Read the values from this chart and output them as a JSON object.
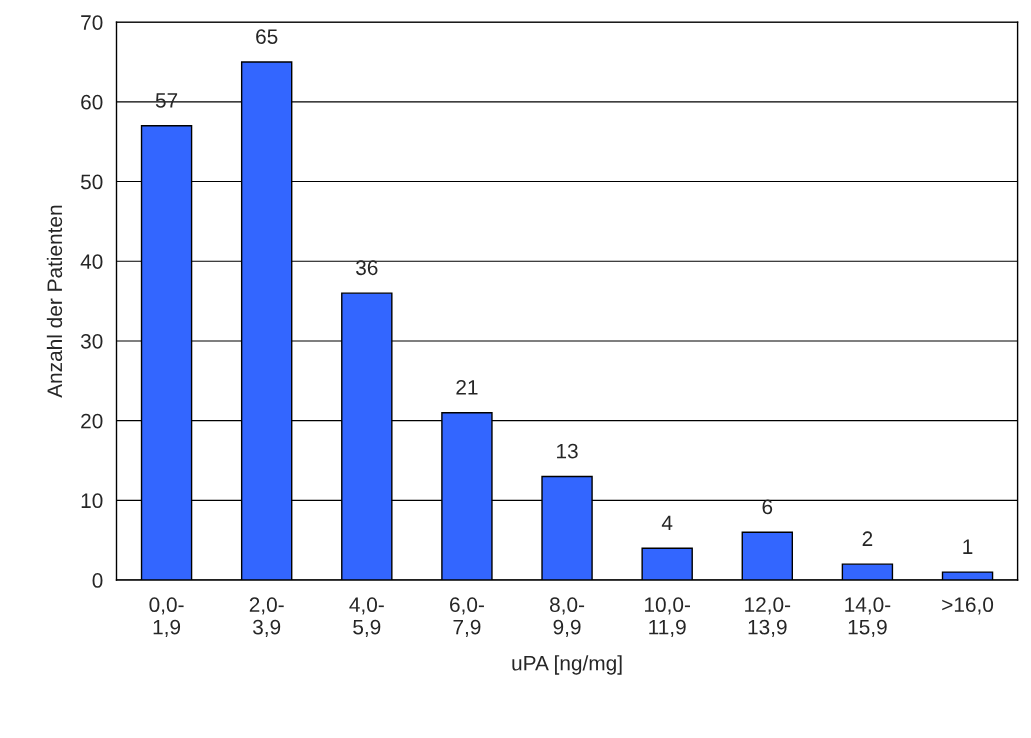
{
  "chart_data": {
    "type": "bar",
    "xlabel": "uPA [ng/mg]",
    "ylabel": "Anzahl der Patienten",
    "categories": [
      "0,0-\n1,9",
      "2,0-\n3,9",
      "4,0-\n5,9",
      "6,0-\n7,9",
      "8,0-\n9,9",
      "10,0-\n11,9",
      "12,0-\n13,9",
      "14,0-\n15,9",
      ">16,0"
    ],
    "values": [
      57,
      65,
      36,
      21,
      13,
      4,
      6,
      2,
      1
    ],
    "color": "#3366ff",
    "ylim": [
      0,
      70
    ],
    "yticks": [
      0,
      10,
      20,
      30,
      40,
      50,
      60,
      70
    ],
    "grid": "y",
    "data_labels": true
  }
}
